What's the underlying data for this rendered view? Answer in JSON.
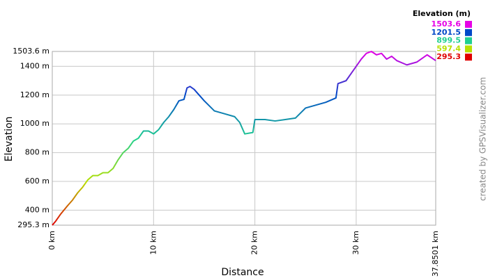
{
  "chart_data": {
    "type": "line",
    "credit": "created by GPSVisualizer.com",
    "x_label": "Distance",
    "y_label": "Elevation",
    "legend": {
      "title": "Elevation (m)",
      "values": [
        1503.6,
        1201.5,
        899.5,
        597.4,
        295.3
      ],
      "value_labels": [
        "1503.6",
        "1201.5",
        "899.5",
        "597.4",
        "295.3"
      ],
      "colors": [
        "#e600e6",
        "#0048c8",
        "#20d090",
        "#b8e000",
        "#e00000"
      ]
    },
    "xlim": [
      0,
      37.8501
    ],
    "ylim": [
      295.3,
      1503.6
    ],
    "xticks": [
      {
        "value": 0,
        "label": "0 km"
      },
      {
        "value": 10,
        "label": "10 km"
      },
      {
        "value": 20,
        "label": "20 km"
      },
      {
        "value": 30,
        "label": "30 km"
      },
      {
        "value": 37.8501,
        "label": "37.8501 km"
      }
    ],
    "yticks": [
      {
        "value": 295.3,
        "label": "295.3 m"
      },
      {
        "value": 400,
        "label": "400 m"
      },
      {
        "value": 600,
        "label": "600 m"
      },
      {
        "value": 800,
        "label": "800 m"
      },
      {
        "value": 1000,
        "label": "1000 m"
      },
      {
        "value": 1200,
        "label": "1200 m"
      },
      {
        "value": 1400,
        "label": "1400 m"
      },
      {
        "value": 1503.6,
        "label": "1503.6 m"
      }
    ],
    "grid": true,
    "series": [
      {
        "name": "Elevation",
        "x": [
          0,
          0.3,
          0.8,
          1.5,
          2,
          2.5,
          3,
          3.5,
          4,
          4.5,
          5,
          5.5,
          6,
          6.5,
          7,
          7.5,
          8,
          8.5,
          9,
          9.5,
          10,
          10.5,
          11,
          11.5,
          12,
          12.5,
          13,
          13.3,
          13.6,
          14,
          15,
          16,
          17,
          18,
          18.5,
          19,
          19.8,
          20,
          21,
          22,
          23,
          24,
          25,
          26,
          27,
          28,
          28.2,
          29,
          30,
          30.5,
          31,
          31.5,
          32,
          32.5,
          33,
          33.5,
          34,
          35,
          36,
          37,
          37.8501
        ],
        "values": [
          295.3,
          320,
          370,
          430,
          470,
          520,
          560,
          610,
          640,
          640,
          660,
          660,
          690,
          750,
          800,
          830,
          880,
          900,
          950,
          950,
          930,
          960,
          1010,
          1050,
          1100,
          1160,
          1170,
          1250,
          1260,
          1240,
          1160,
          1090,
          1070,
          1050,
          1010,
          930,
          940,
          1030,
          1030,
          1020,
          1030,
          1040,
          1110,
          1130,
          1150,
          1180,
          1280,
          1300,
          1400,
          1450,
          1490,
          1503.6,
          1480,
          1490,
          1450,
          1470,
          1440,
          1410,
          1430,
          1480,
          1440
        ]
      }
    ]
  }
}
